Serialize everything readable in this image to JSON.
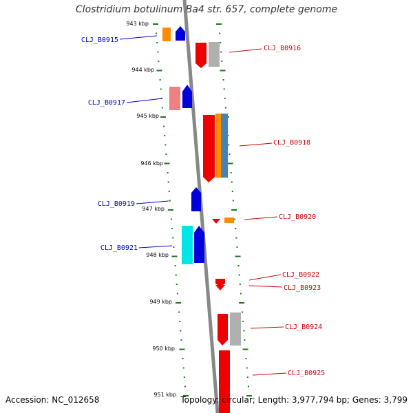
{
  "title": "Clostridium botulinum Ba4 str. 657, complete genome",
  "footer": {
    "accession": "Accession: NC_012658",
    "summary": "Topology: circular; Length: 3,977,794 bp; Genes: 3,799"
  },
  "colors": {
    "red": "#ee0000",
    "blue": "#0000dd",
    "orange": "#ff8c00",
    "steelblue": "#4682b4",
    "cyan": "#00e5e5",
    "pink": "#f08080",
    "gray": "#b0b0b0",
    "backbone": "#888888",
    "tick": "#1a7a1a",
    "label_blue": "#0000cc",
    "label_red": "#cc0000"
  },
  "kbp_ticks": [
    "943 kbp",
    "944 kbp",
    "945 kbp",
    "946 kbp",
    "947 kbp",
    "948 kbp",
    "949 kbp",
    "950 kbp",
    "951 kbp"
  ],
  "genes": [
    {
      "id": "CLJ_B0915",
      "side": "left"
    },
    {
      "id": "CLJ_B0916",
      "side": "right"
    },
    {
      "id": "CLJ_B0917",
      "side": "left"
    },
    {
      "id": "CLJ_B0918",
      "side": "right"
    },
    {
      "id": "CLJ_B0919",
      "side": "left"
    },
    {
      "id": "CLJ_B0920",
      "side": "right"
    },
    {
      "id": "CLJ_B0921",
      "side": "left"
    },
    {
      "id": "CLJ_B0922",
      "side": "right"
    },
    {
      "id": "CLJ_B0923",
      "side": "right"
    },
    {
      "id": "CLJ_B0924",
      "side": "right"
    },
    {
      "id": "CLJ_B0925",
      "side": "right"
    }
  ]
}
